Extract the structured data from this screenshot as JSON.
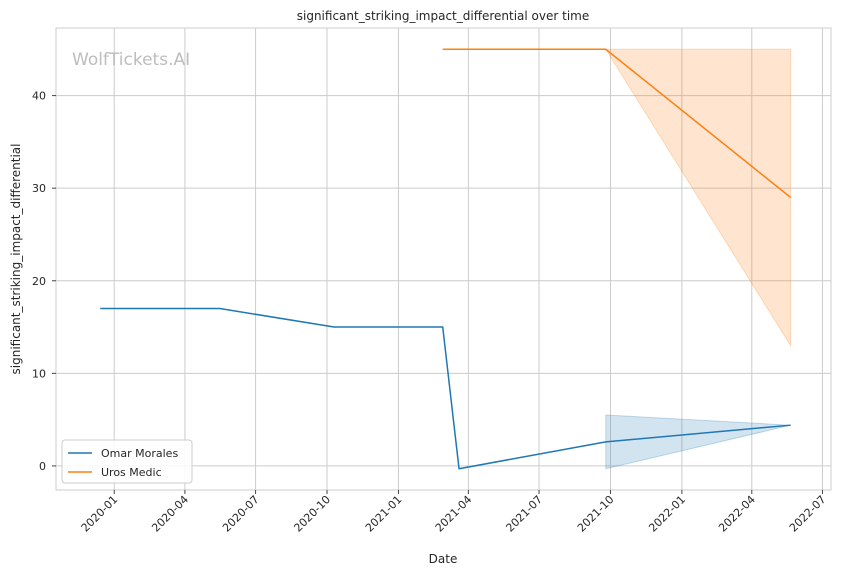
{
  "watermark": "WolfTickets.AI",
  "chart_data": {
    "type": "line",
    "title": "significant_striking_impact_differential over time",
    "xlabel": "Date",
    "ylabel": "significant_striking_impact_differential",
    "x_ticks": [
      "2020-01",
      "2020-04",
      "2020-07",
      "2020-10",
      "2021-01",
      "2021-04",
      "2021-07",
      "2021-10",
      "2022-01",
      "2022-04",
      "2022-07"
    ],
    "y_ticks": [
      0,
      10,
      20,
      30,
      40
    ],
    "xlim": [
      "2019-10-18",
      "2022-07-12"
    ],
    "ylim": [
      -2.6,
      47.3
    ],
    "grid": true,
    "legend_position": "lower-left",
    "series": [
      {
        "name": "Omar Morales",
        "color": "#1f77b4",
        "points": [
          {
            "x": "2019-12-14",
            "y": 17
          },
          {
            "x": "2020-05-16",
            "y": 17
          },
          {
            "x": "2020-10-10",
            "y": 15
          },
          {
            "x": "2021-02-27",
            "y": 15
          },
          {
            "x": "2021-03-20",
            "y": -0.3
          },
          {
            "x": "2021-09-25",
            "y": 2.6
          },
          {
            "x": "2022-05-21",
            "y": 4.4
          }
        ],
        "band": [
          {
            "x": "2021-09-25",
            "low": -0.3,
            "high": 5.5
          },
          {
            "x": "2022-05-21",
            "low": 4.4,
            "high": 4.4
          }
        ]
      },
      {
        "name": "Uros Medic",
        "color": "#ff7f0e",
        "points": [
          {
            "x": "2021-02-27",
            "y": 45
          },
          {
            "x": "2021-09-25",
            "y": 45
          },
          {
            "x": "2022-05-21",
            "y": 29
          }
        ],
        "band": [
          {
            "x": "2021-09-25",
            "low": 45,
            "high": 45
          },
          {
            "x": "2022-05-21",
            "low": 13,
            "high": 45
          }
        ]
      }
    ]
  }
}
